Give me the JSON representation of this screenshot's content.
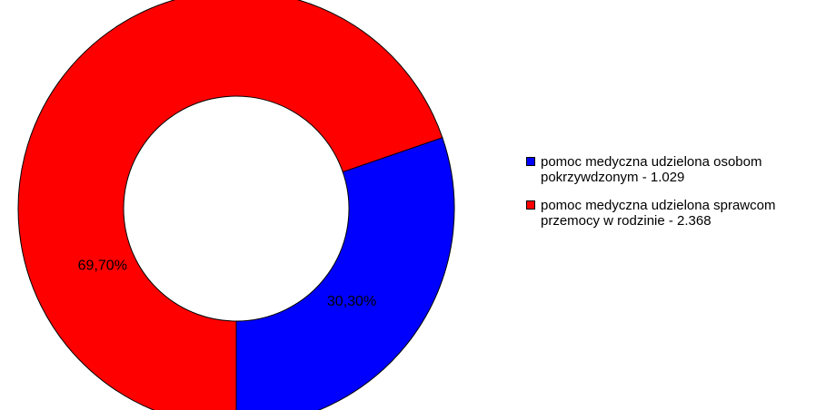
{
  "chart_data": {
    "type": "pie",
    "variant": "donut",
    "slices": [
      {
        "label": "pomoc medyczna udzielona osobom pokrzywdzonym - 1.029",
        "value": 1029,
        "percent_label": "30,30%",
        "color": "#0000ff"
      },
      {
        "label": "pomoc medyczna udzielona sprawcom przemocy w rodzinie - 2.368",
        "value": 2368,
        "percent_label": "69,70%",
        "color": "#ff0000"
      }
    ],
    "legend_position": "right"
  }
}
